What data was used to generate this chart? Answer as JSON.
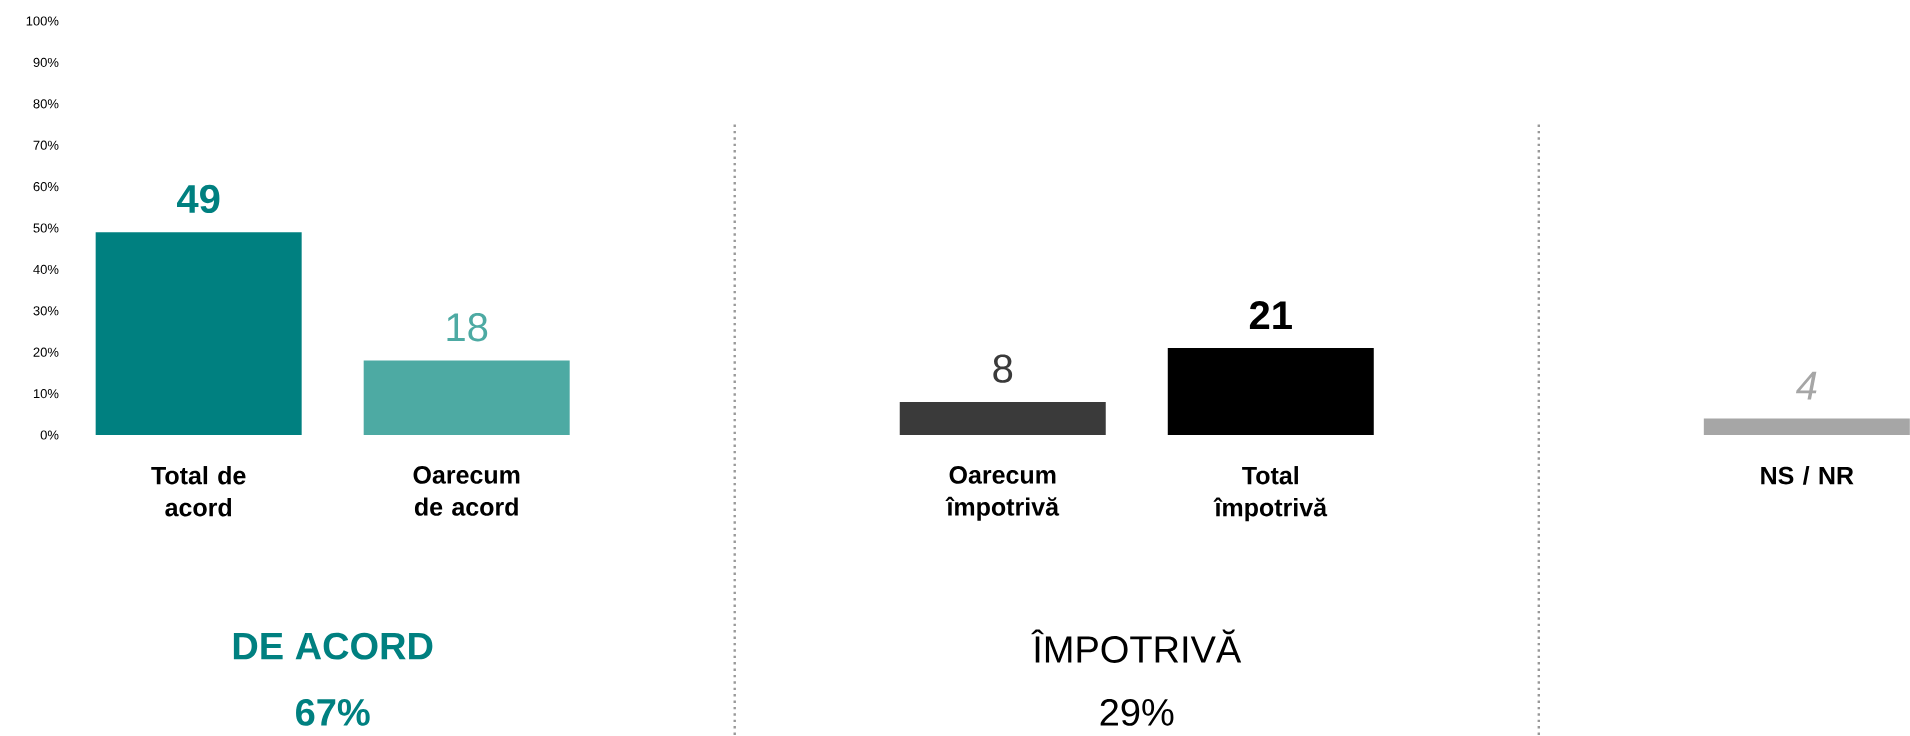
{
  "chart_data": {
    "type": "bar",
    "categories": [
      "Total de acord",
      "Oarecum de acord",
      null,
      "Oarecum împotrivă",
      "Total împotrivă",
      null,
      "NS / NR"
    ],
    "values": [
      49,
      18,
      null,
      8,
      21,
      null,
      4
    ],
    "colors": [
      "#008080",
      "#4daaa3",
      null,
      "#3a3a3a",
      "#000000",
      null,
      "#a6a6a6"
    ],
    "data_labels": true,
    "ylim": [
      0,
      100
    ],
    "yticks": [
      {
        "value": 0,
        "label": "0%"
      },
      {
        "value": 10,
        "label": "10%"
      },
      {
        "value": 20,
        "label": "20%"
      },
      {
        "value": 30,
        "label": "30%"
      },
      {
        "value": 40,
        "label": "40%"
      },
      {
        "value": 50,
        "label": "50%"
      },
      {
        "value": 60,
        "label": "60%"
      },
      {
        "value": 70,
        "label": "70%"
      },
      {
        "value": 80,
        "label": "80%"
      },
      {
        "value": 90,
        "label": "90%"
      },
      {
        "value": 100,
        "label": "100%"
      }
    ],
    "annotations": [
      "DE ACORD",
      "67%",
      "ÎMPOTRIVĂ",
      "29%"
    ]
  }
}
